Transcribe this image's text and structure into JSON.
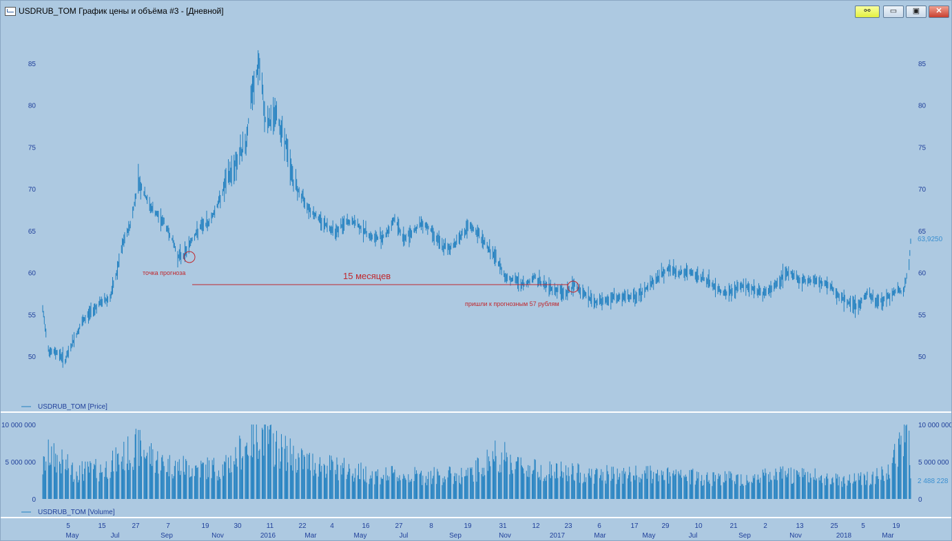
{
  "window": {
    "title": "USDRUB_TOM График цены и объёма #3 - [Дневной]",
    "buttons": {
      "link": "⚯",
      "minimize": "▭",
      "maximize": "▣",
      "close": "✕"
    }
  },
  "colors": {
    "background": "#adc9e1",
    "series": "#1f7fc0",
    "annotation": "#c0272d",
    "axis_text": "#1f3f9a"
  },
  "price_panel": {
    "legend": "USDRUB_TOM [Price]",
    "y_ticks": [
      "85",
      "80",
      "75",
      "70",
      "65",
      "60",
      "55",
      "50"
    ],
    "last_value_label": "63,9250"
  },
  "volume_panel": {
    "legend": "USDRUB_TOM [Volume]",
    "y_ticks_left": [
      "10 000 000",
      "5 000 000",
      "0"
    ],
    "y_ticks_right": [
      "10 000 000",
      "5 000 000",
      "0"
    ],
    "last_value_label": "2 488 228"
  },
  "annotations": {
    "forecast_point": "точка прогноза",
    "duration": "15 месяцев",
    "reached": "пришли к прогнозным 57 рублям"
  },
  "date_axis": {
    "days": [
      "5",
      "15",
      "27",
      "7",
      "19",
      "30",
      "11",
      "22",
      "4",
      "16",
      "27",
      "8",
      "19",
      "31",
      "12",
      "23",
      "6",
      "17",
      "29",
      "10",
      "21",
      "2",
      "13",
      "25",
      "5",
      "19"
    ],
    "months": [
      "May",
      "Jul",
      "Sep",
      "Nov",
      "2016",
      "Mar",
      "May",
      "Jul",
      "Sep",
      "Nov",
      "2017",
      "Mar",
      "May",
      "Jul",
      "Sep",
      "Nov",
      "2018",
      "Mar"
    ]
  },
  "chart_data": {
    "type": "line",
    "series": [
      {
        "name": "USDRUB_TOM [Price]",
        "points": [
          [
            "2015-04-27",
            55.5
          ],
          [
            "2015-05-05",
            50.5
          ],
          [
            "2015-05-15",
            50.5
          ],
          [
            "2015-05-25",
            49.5
          ],
          [
            "2015-06-05",
            52.0
          ],
          [
            "2015-06-15",
            54.0
          ],
          [
            "2015-06-27",
            55.5
          ],
          [
            "2015-07-10",
            56.5
          ],
          [
            "2015-07-20",
            57.0
          ],
          [
            "2015-07-27",
            59.5
          ],
          [
            "2015-08-05",
            63.5
          ],
          [
            "2015-08-15",
            66.0
          ],
          [
            "2015-08-24",
            71.0
          ],
          [
            "2015-09-07",
            68.0
          ],
          [
            "2015-09-15",
            67.0
          ],
          [
            "2015-09-25",
            66.0
          ],
          [
            "2015-10-05",
            64.0
          ],
          [
            "2015-10-12",
            62.0
          ],
          [
            "2015-10-19",
            62.0
          ],
          [
            "2015-10-30",
            64.0
          ],
          [
            "2015-11-10",
            65.5
          ],
          [
            "2015-11-20",
            66.0
          ],
          [
            "2015-11-30",
            68.0
          ],
          [
            "2015-12-10",
            70.5
          ],
          [
            "2015-12-20",
            72.5
          ],
          [
            "2016-01-05",
            75.5
          ],
          [
            "2016-01-11",
            80.5
          ],
          [
            "2016-01-21",
            85.0
          ],
          [
            "2016-01-30",
            77.5
          ],
          [
            "2016-02-11",
            79.0
          ],
          [
            "2016-02-22",
            76.0
          ],
          [
            "2016-03-05",
            70.5
          ],
          [
            "2016-03-15",
            69.0
          ],
          [
            "2016-03-25",
            67.5
          ],
          [
            "2016-04-04",
            66.5
          ],
          [
            "2016-04-16",
            65.5
          ],
          [
            "2016-04-27",
            65.0
          ],
          [
            "2016-05-08",
            66.0
          ],
          [
            "2016-05-19",
            66.0
          ],
          [
            "2016-05-31",
            65.0
          ],
          [
            "2016-06-12",
            64.0
          ],
          [
            "2016-06-27",
            64.5
          ],
          [
            "2016-07-08",
            66.5
          ],
          [
            "2016-07-19",
            64.0
          ],
          [
            "2016-07-31",
            65.0
          ],
          [
            "2016-08-12",
            66.0
          ],
          [
            "2016-08-23",
            65.0
          ],
          [
            "2016-09-06",
            63.0
          ],
          [
            "2016-09-17",
            63.0
          ],
          [
            "2016-09-29",
            64.5
          ],
          [
            "2016-10-10",
            65.5
          ],
          [
            "2016-10-21",
            64.5
          ],
          [
            "2016-11-01",
            63.0
          ],
          [
            "2016-11-12",
            61.5
          ],
          [
            "2016-11-23",
            59.5
          ],
          [
            "2016-12-06",
            59.0
          ],
          [
            "2016-12-17",
            58.5
          ],
          [
            "2016-12-29",
            59.5
          ],
          [
            "2017-01-10",
            58.5
          ],
          [
            "2017-01-23",
            58.0
          ],
          [
            "2017-02-06",
            57.5
          ],
          [
            "2017-02-17",
            58.5
          ],
          [
            "2017-03-01",
            57.5
          ],
          [
            "2017-03-12",
            56.5
          ],
          [
            "2017-03-23",
            56.5
          ],
          [
            "2017-04-06",
            57.0
          ],
          [
            "2017-04-17",
            57.0
          ],
          [
            "2017-04-29",
            57.0
          ],
          [
            "2017-05-10",
            57.5
          ],
          [
            "2017-05-21",
            58.5
          ],
          [
            "2017-06-02",
            59.5
          ],
          [
            "2017-06-13",
            60.5
          ],
          [
            "2017-06-25",
            60.0
          ],
          [
            "2017-07-10",
            60.0
          ],
          [
            "2017-07-21",
            59.5
          ],
          [
            "2017-08-02",
            59.0
          ],
          [
            "2017-08-13",
            58.0
          ],
          [
            "2017-08-25",
            57.5
          ],
          [
            "2017-09-05",
            58.0
          ],
          [
            "2017-09-16",
            58.5
          ],
          [
            "2017-09-28",
            58.0
          ],
          [
            "2017-10-09",
            57.5
          ],
          [
            "2017-10-20",
            58.0
          ],
          [
            "2017-11-02",
            59.5
          ],
          [
            "2017-11-13",
            60.0
          ],
          [
            "2017-11-24",
            59.0
          ],
          [
            "2017-12-06",
            59.0
          ],
          [
            "2017-12-17",
            59.0
          ],
          [
            "2017-12-29",
            58.5
          ],
          [
            "2018-01-10",
            57.5
          ],
          [
            "2018-01-21",
            56.5
          ],
          [
            "2018-02-05",
            56.0
          ],
          [
            "2018-02-16",
            57.5
          ],
          [
            "2018-02-27",
            56.5
          ],
          [
            "2018-03-12",
            57.0
          ],
          [
            "2018-03-19",
            57.5
          ],
          [
            "2018-03-26",
            58.0
          ],
          [
            "2018-04-02",
            57.5
          ],
          [
            "2018-04-09",
            61.0
          ],
          [
            "2018-04-11",
            63.9
          ]
        ]
      },
      {
        "name": "USDRUB_TOM [Volume]",
        "points": [
          [
            "2015-04-27",
            4500000
          ],
          [
            "2015-05-05",
            6500000
          ],
          [
            "2015-06-05",
            4000000
          ],
          [
            "2015-07-10",
            4200000
          ],
          [
            "2015-08-24",
            7500000
          ],
          [
            "2015-09-25",
            5000000
          ],
          [
            "2015-10-30",
            4500000
          ],
          [
            "2015-12-10",
            4500000
          ],
          [
            "2016-01-21",
            9800000
          ],
          [
            "2016-02-11",
            7500000
          ],
          [
            "2016-03-15",
            5500000
          ],
          [
            "2016-04-27",
            4500000
          ],
          [
            "2016-06-12",
            3500000
          ],
          [
            "2016-08-12",
            3300000
          ],
          [
            "2016-10-10",
            3500000
          ],
          [
            "2016-11-12",
            6500000
          ],
          [
            "2016-12-17",
            4500000
          ],
          [
            "2017-01-23",
            4000000
          ],
          [
            "2017-03-12",
            3500000
          ],
          [
            "2017-05-21",
            3500000
          ],
          [
            "2017-07-10",
            3200000
          ],
          [
            "2017-09-16",
            3000000
          ],
          [
            "2017-11-13",
            3500000
          ],
          [
            "2018-01-21",
            2800000
          ],
          [
            "2018-03-12",
            3500000
          ],
          [
            "2018-04-09",
            9800000
          ],
          [
            "2018-04-11",
            2488228
          ]
        ]
      }
    ],
    "y_range_price": [
      48,
      87
    ],
    "y_range_volume": [
      0,
      10000000
    ],
    "x_range": [
      "2015-04-27",
      "2018-04-11"
    ],
    "grid": false,
    "legend": "bottom-left"
  }
}
